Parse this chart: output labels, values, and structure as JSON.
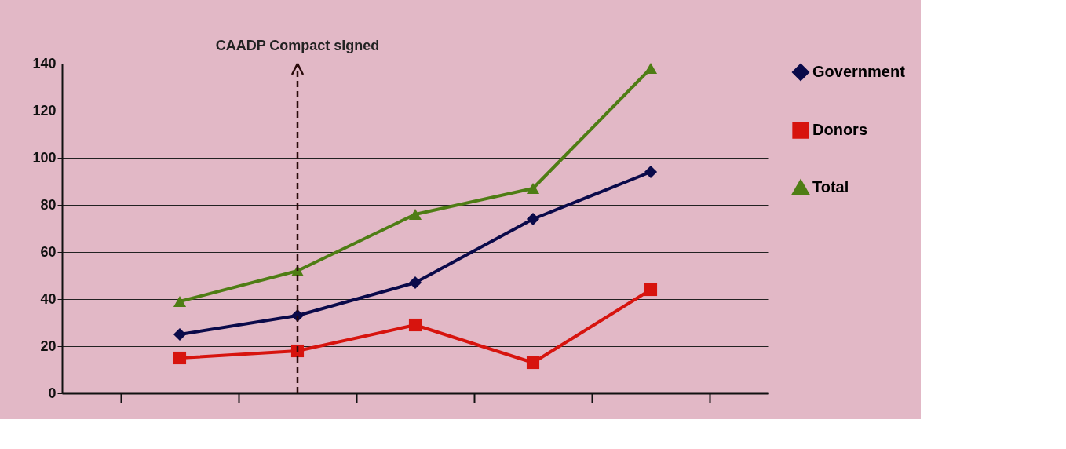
{
  "chart_data": {
    "type": "line",
    "categories": [
      null,
      null,
      null,
      null,
      null
    ],
    "series": [
      {
        "name": "Government",
        "color": "#0a0a4a",
        "marker": "diamond",
        "values": [
          25,
          33,
          47,
          74,
          94
        ]
      },
      {
        "name": "Donors",
        "color": "#d7140e",
        "marker": "square",
        "values": [
          15,
          18,
          29,
          13,
          44
        ]
      },
      {
        "name": "Total",
        "color": "#4e7d14",
        "marker": "triangle",
        "values": [
          39,
          52,
          76,
          87,
          138
        ]
      }
    ],
    "ylim": [
      0,
      140
    ],
    "yticks": [
      0,
      20,
      40,
      60,
      80,
      100,
      120,
      140
    ],
    "grid": "y",
    "legend": "right",
    "tick_labels": "y",
    "line_style": "solid",
    "annotations": [
      "CAADP Compact signed"
    ]
  }
}
